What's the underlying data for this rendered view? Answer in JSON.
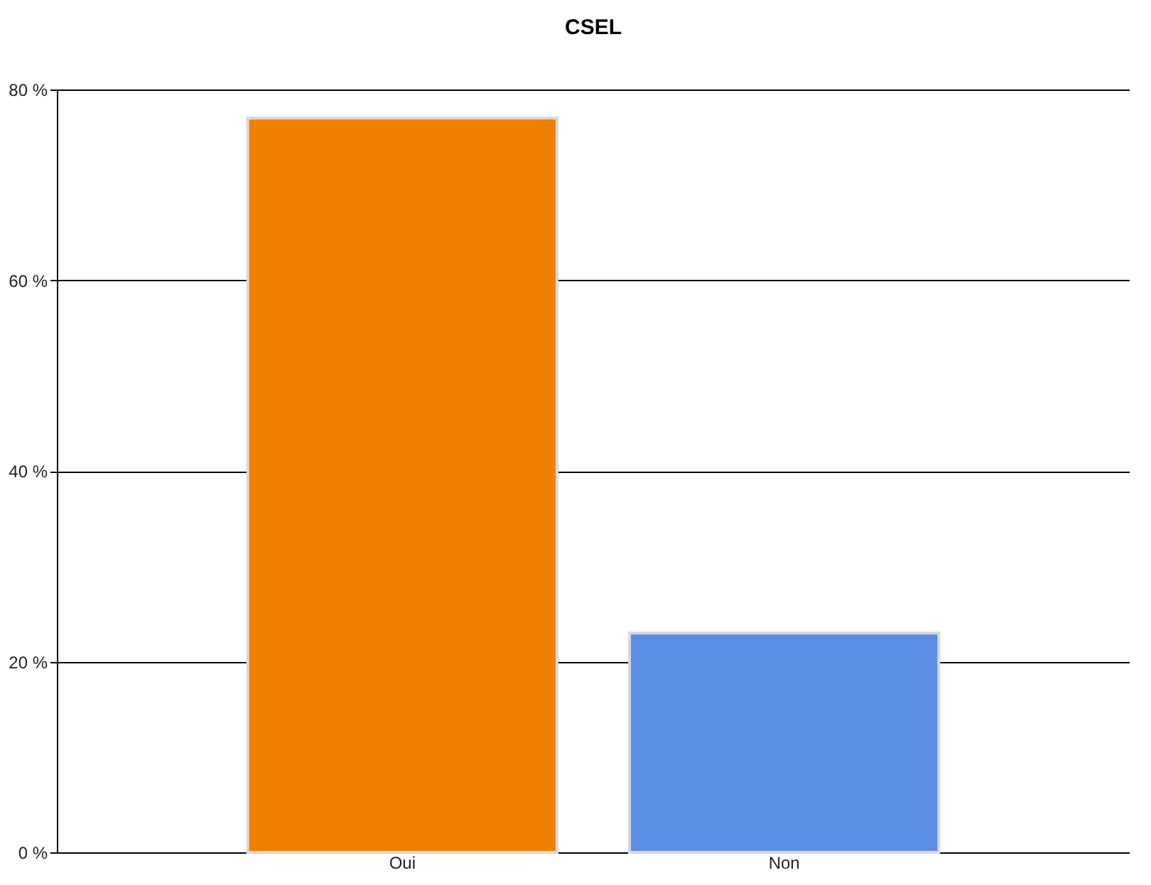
{
  "chart_data": {
    "type": "bar",
    "title": "CSEL",
    "categories": [
      "Oui",
      "Non"
    ],
    "values": [
      77,
      23
    ],
    "colors": [
      "#f08000",
      "#5b8ee3"
    ],
    "ylim": [
      0,
      80
    ],
    "yticks": [
      {
        "value": 0,
        "label": "0 %"
      },
      {
        "value": 20,
        "label": "20 %"
      },
      {
        "value": 40,
        "label": "40 %"
      },
      {
        "value": 60,
        "label": "60 %"
      },
      {
        "value": 80,
        "label": "80 %"
      }
    ],
    "grid": "y",
    "legend": false
  }
}
